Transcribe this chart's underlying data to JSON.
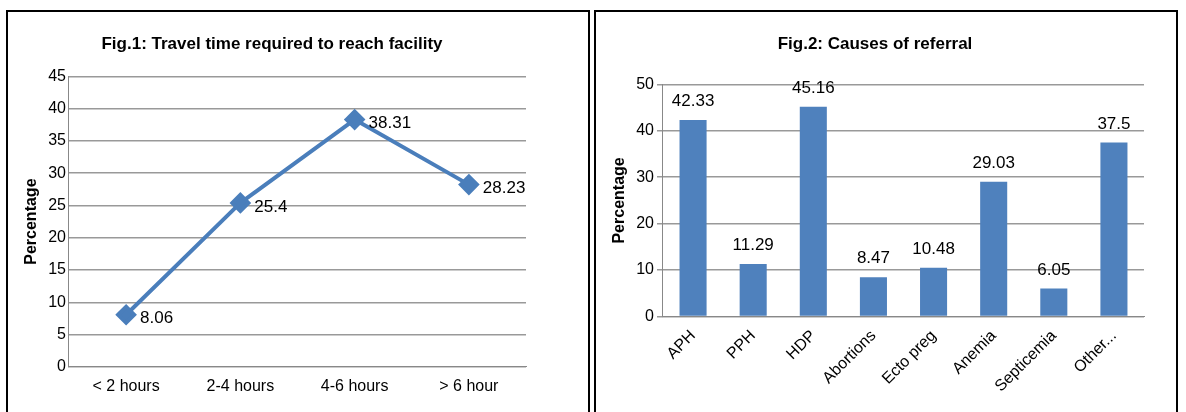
{
  "chart_data": [
    {
      "type": "line",
      "title": "Fig.1: Travel time required to reach facility",
      "ylabel": "Percentage",
      "categories": [
        "< 2 hours",
        "2-4 hours",
        "4-6 hours",
        "> 6 hour"
      ],
      "series": [
        {
          "color": "#4a7ebb",
          "values": [
            8.06,
            25.4,
            38.31,
            28.23
          ]
        }
      ],
      "ylim": [
        0,
        45
      ],
      "yticks": [
        0,
        5,
        10,
        15,
        20,
        25,
        30,
        35,
        40,
        45
      ],
      "grid": "y",
      "marker": "diamond",
      "line_style": "solid",
      "data_labels": true,
      "legend": false
    },
    {
      "type": "bar",
      "title": "Fig.2: Causes of referral",
      "ylabel": "Percentage",
      "categories": [
        "APH",
        "PPH",
        "HDP",
        "Abortions",
        "Ecto preg",
        "Anemia",
        "Septicemia",
        "Other..."
      ],
      "series": [
        {
          "color": "#4f81bd",
          "values": [
            42.33,
            11.29,
            45.16,
            8.47,
            10.48,
            29.03,
            6.05,
            37.5
          ]
        }
      ],
      "ylim": [
        0,
        50
      ],
      "yticks": [
        0,
        10,
        20,
        30,
        40,
        50
      ],
      "grid": "y",
      "data_labels": true,
      "legend": false
    }
  ]
}
